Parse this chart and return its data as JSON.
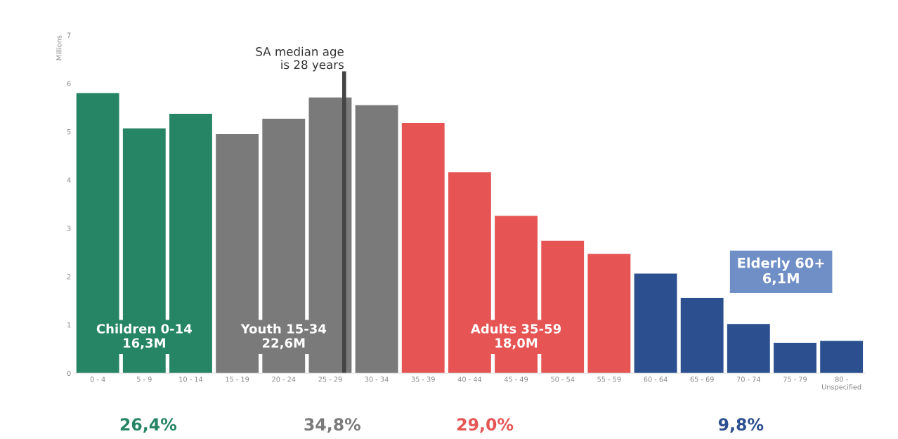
{
  "chart_data": {
    "type": "bar",
    "ylabel": "Millions",
    "categories": [
      "0 - 4",
      "5 - 9",
      "10 - 14",
      "15 - 19",
      "20 - 24",
      "25 - 29",
      "30 - 34",
      "35 - 39",
      "40 - 44",
      "45 - 49",
      "50 - 54",
      "55 - 59",
      "60 - 64",
      "65 - 69",
      "70 - 74",
      "75 - 79",
      "80 -\nUnspecified"
    ],
    "values": [
      5.8,
      5.07,
      5.37,
      4.95,
      5.27,
      5.71,
      5.55,
      5.18,
      4.16,
      3.26,
      2.74,
      2.47,
      2.06,
      1.56,
      1.02,
      0.63,
      0.67
    ],
    "colors": [
      "#268565",
      "#268565",
      "#268565",
      "#7a7a7a",
      "#7a7a7a",
      "#7a7a7a",
      "#7a7a7a",
      "#e65454",
      "#e65454",
      "#e65454",
      "#e65454",
      "#e65454",
      "#2b4f8f",
      "#2b4f8f",
      "#2b4f8f",
      "#2b4f8f",
      "#2b4f8f"
    ],
    "ylim": [
      0,
      7
    ],
    "yticks": [
      0,
      1,
      2,
      3,
      4,
      5,
      6,
      7
    ],
    "grid": false,
    "legend": false,
    "ref_lines": [
      {
        "axis": "x",
        "value": "25 - 29",
        "label": "SA median age\nis 28 years",
        "color": "#444444"
      }
    ],
    "annotations": [
      "Children 0-14\n16,3M",
      "Youth 15-34\n22,6M",
      "Adults 35-59\n18,0M",
      "Elderly 60+\n6,1M",
      "26,4%",
      "34,8%",
      "29,0%",
      "9,8%"
    ]
  }
}
